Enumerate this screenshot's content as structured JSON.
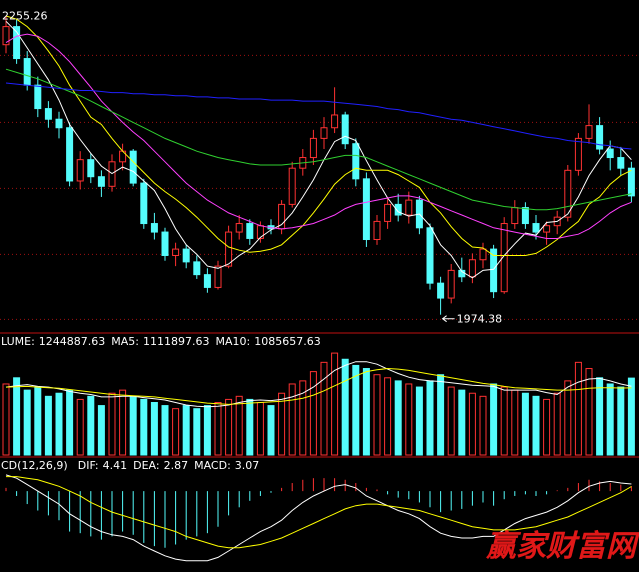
{
  "chart_data": [
    {
      "type": "candlestick",
      "ylim": [
        1960,
        2270
      ],
      "gridlines": [
        2218,
        2155,
        2093,
        2031,
        1970
      ],
      "grid_color": "#a01010",
      "up_color": "#ff3232",
      "down_color": "#54fcfc",
      "open": [
        2228,
        2245,
        2215,
        2190,
        2168,
        2158,
        2150,
        2100,
        2120,
        2104,
        2095,
        2118,
        2128,
        2098,
        2060,
        2052,
        2030,
        2036,
        2024,
        2012,
        2000,
        2020,
        2052,
        2060,
        2046,
        2058,
        2055,
        2078,
        2112,
        2122,
        2140,
        2150,
        2162,
        2135,
        2102,
        2045,
        2062,
        2078,
        2068,
        2082,
        2056,
        2004,
        1990,
        2016,
        2010,
        2026,
        2036,
        1996,
        2060,
        2075,
        2060,
        2052,
        2058,
        2066,
        2110,
        2140,
        2152,
        2130,
        2122,
        2112
      ],
      "high": [
        2255.26,
        2252,
        2222,
        2198,
        2175,
        2165,
        2155,
        2128,
        2126,
        2110,
        2125,
        2135,
        2130,
        2102,
        2070,
        2056,
        2042,
        2040,
        2030,
        2018,
        2025,
        2058,
        2068,
        2064,
        2062,
        2064,
        2082,
        2118,
        2130,
        2148,
        2160,
        2188,
        2165,
        2140,
        2108,
        2068,
        2085,
        2088,
        2090,
        2086,
        2060,
        2010,
        2022,
        2028,
        2032,
        2042,
        2040,
        2066,
        2082,
        2080,
        2068,
        2062,
        2072,
        2115,
        2145,
        2172,
        2160,
        2138,
        2132,
        2118
      ],
      "low": [
        2220,
        2210,
        2185,
        2160,
        2150,
        2140,
        2095,
        2092,
        2098,
        2085,
        2090,
        2110,
        2095,
        2055,
        2045,
        2025,
        2020,
        2018,
        2008,
        1995,
        1998,
        2018,
        2045,
        2040,
        2042,
        2050,
        2050,
        2075,
        2105,
        2115,
        2130,
        2145,
        2130,
        2095,
        2038,
        2040,
        2055,
        2062,
        2060,
        2050,
        1998,
        1974.38,
        1985,
        2005,
        2004,
        2018,
        1990,
        1994,
        2055,
        2055,
        2045,
        2040,
        2050,
        2062,
        2105,
        2135,
        2125,
        2110,
        2105,
        2080
      ],
      "close": [
        2245,
        2215,
        2190,
        2168,
        2158,
        2150,
        2100,
        2120,
        2104,
        2095,
        2118,
        2128,
        2098,
        2060,
        2052,
        2030,
        2036,
        2024,
        2012,
        2000,
        2020,
        2052,
        2060,
        2046,
        2058,
        2055,
        2078,
        2112,
        2122,
        2140,
        2150,
        2162,
        2135,
        2102,
        2045,
        2062,
        2078,
        2068,
        2082,
        2056,
        2004,
        1990,
        2016,
        2010,
        2026,
        2036,
        1996,
        2060,
        2075,
        2060,
        2052,
        2058,
        2066,
        2110,
        2140,
        2152,
        2130,
        2122,
        2112,
        2086
      ],
      "lines": [
        {
          "color": "#ffffff",
          "values": [
            2250,
            2240,
            2225,
            2210,
            2195,
            2176,
            2153,
            2139,
            2126,
            2114,
            2107,
            2113,
            2109,
            2100,
            2091,
            2074,
            2055,
            2040,
            2031,
            2020,
            2018,
            2022,
            2030,
            2036,
            2047,
            2054,
            2059,
            2070,
            2085,
            2101,
            2120,
            2137,
            2142,
            2138,
            2119,
            2101,
            2084,
            2071,
            2067,
            2069,
            2058,
            2040,
            2030,
            2015,
            2009,
            2016,
            2017,
            2030,
            2041,
            2051,
            2049,
            2061,
            2062,
            2069,
            2085,
            2105,
            2120,
            2133,
            2131,
            2120
          ]
        },
        {
          "color": "#ffff00",
          "values": [
            2255,
            2252,
            2245,
            2235,
            2222,
            2208,
            2190,
            2175,
            2160,
            2153,
            2140,
            2128,
            2118,
            2108,
            2098,
            2090,
            2083,
            2075,
            2066,
            2056,
            2046,
            2038,
            2035,
            2033,
            2034,
            2036,
            2040,
            2049,
            2058,
            2070,
            2083,
            2097,
            2106,
            2112,
            2110,
            2110,
            2110,
            2106,
            2100,
            2094,
            2080,
            2070,
            2057,
            2046,
            2038,
            2037,
            2030,
            2030,
            2030,
            2030,
            2032,
            2038,
            2045,
            2054,
            2062,
            2078,
            2085,
            2097,
            2105,
            2110
          ]
        },
        {
          "color": "#ff40ff",
          "values": [
            2230,
            2236,
            2238,
            2236,
            2230,
            2222,
            2212,
            2200,
            2188,
            2175,
            2165,
            2155,
            2146,
            2138,
            2128,
            2118,
            2108,
            2098,
            2090,
            2082,
            2076,
            2070,
            2066,
            2062,
            2058,
            2056,
            2055,
            2056,
            2058,
            2060,
            2064,
            2068,
            2074,
            2078,
            2080,
            2082,
            2084,
            2086,
            2086,
            2084,
            2080,
            2076,
            2072,
            2068,
            2064,
            2060,
            2056,
            2054,
            2052,
            2050,
            2048,
            2046,
            2046,
            2048,
            2050,
            2055,
            2062,
            2070,
            2076,
            2080
          ]
        },
        {
          "color": "#30d030",
          "values": [
            2205,
            2202,
            2199,
            2196,
            2192,
            2188,
            2184,
            2180,
            2175,
            2170,
            2165,
            2160,
            2155,
            2150,
            2145,
            2140,
            2136,
            2132,
            2128,
            2125,
            2122,
            2120,
            2118,
            2116,
            2115,
            2115,
            2115,
            2116,
            2117,
            2118,
            2120,
            2122,
            2124,
            2124,
            2122,
            2118,
            2114,
            2110,
            2106,
            2102,
            2098,
            2094,
            2090,
            2086,
            2082,
            2080,
            2078,
            2076,
            2075,
            2074,
            2073,
            2073,
            2074,
            2076,
            2078,
            2080,
            2082,
            2084,
            2086,
            2088
          ]
        },
        {
          "color": "#2020ff",
          "values": [
            2192,
            2191,
            2190,
            2189,
            2188,
            2187,
            2186,
            2185,
            2185,
            2184,
            2183,
            2183,
            2182,
            2182,
            2181,
            2181,
            2180,
            2180,
            2179,
            2179,
            2178,
            2178,
            2177,
            2177,
            2177,
            2176,
            2176,
            2176,
            2175,
            2175,
            2175,
            2174,
            2173,
            2172,
            2171,
            2170,
            2168,
            2167,
            2165,
            2164,
            2162,
            2160,
            2158,
            2157,
            2155,
            2153,
            2151,
            2149,
            2147,
            2145,
            2143,
            2141,
            2140,
            2138,
            2137,
            2136,
            2134,
            2133,
            2131,
            2130
          ]
        }
      ]
    },
    {
      "type": "volume",
      "label": "LUME:",
      "label_color": "#ffffff",
      "ylim": [
        0,
        1700000
      ],
      "values": [
        1150000,
        1250000,
        1050000,
        1100000,
        950000,
        1000000,
        1050000,
        900000,
        950000,
        800000,
        1000000,
        1050000,
        950000,
        900000,
        850000,
        800000,
        750000,
        800000,
        750000,
        800000,
        850000,
        900000,
        950000,
        900000,
        850000,
        800000,
        1000000,
        1150000,
        1200000,
        1350000,
        1500000,
        1650000,
        1550000,
        1450000,
        1400000,
        1300000,
        1250000,
        1200000,
        1150000,
        1100000,
        1200000,
        1300000,
        1100000,
        1050000,
        1000000,
        950000,
        1150000,
        1100000,
        1050000,
        1000000,
        950000,
        900000,
        1000000,
        1200000,
        1500000,
        1400000,
        1250000,
        1150000,
        1100000,
        1244887.63
      ],
      "lines": [
        {
          "label": "MA5:",
          "color": "#ffffff",
          "values": [
            1100000,
            1120000,
            1140000,
            1110000,
            1100000,
            1070000,
            1030000,
            1000000,
            980000,
            940000,
            940000,
            950000,
            950000,
            930000,
            910000,
            890000,
            850000,
            810000,
            790000,
            780000,
            790000,
            810000,
            850000,
            880000,
            890000,
            880000,
            900000,
            940000,
            1000000,
            1100000,
            1230000,
            1370000,
            1450000,
            1510000,
            1510000,
            1470000,
            1390000,
            1320000,
            1260000,
            1220000,
            1200000,
            1190000,
            1170000,
            1150000,
            1130000,
            1120000,
            1110000,
            1050000,
            1050000,
            1050000,
            1050000,
            1010000,
            980000,
            1100000,
            1180000,
            1230000,
            1240000,
            1200000,
            1150000,
            1111897.63
          ]
        },
        {
          "label": "MA10:",
          "color": "#ffff00",
          "values": [
            1100000,
            1105000,
            1110000,
            1100000,
            1090000,
            1080000,
            1060000,
            1040000,
            1020000,
            1000000,
            980000,
            970000,
            960000,
            950000,
            940000,
            920000,
            900000,
            880000,
            860000,
            840000,
            830000,
            820000,
            830000,
            840000,
            850000,
            860000,
            870000,
            890000,
            920000,
            970000,
            1040000,
            1120000,
            1200000,
            1280000,
            1350000,
            1380000,
            1400000,
            1390000,
            1370000,
            1340000,
            1310000,
            1280000,
            1250000,
            1220000,
            1190000,
            1160000,
            1140000,
            1110000,
            1090000,
            1080000,
            1070000,
            1060000,
            1050000,
            1050000,
            1060000,
            1080000,
            1090000,
            1090000,
            1085000,
            1085657.63
          ]
        }
      ]
    },
    {
      "type": "macd",
      "title": "CD(12,26,9)",
      "label": "MACD:",
      "label_color": "#ff40ff",
      "ylim": [
        -50,
        18
      ],
      "values": [
        2,
        -3,
        -8,
        -12,
        -15,
        -18,
        -25,
        -26,
        -28,
        -30,
        -28,
        -25,
        -27,
        -32,
        -34,
        -35,
        -33,
        -30,
        -28,
        -26,
        -22,
        -15,
        -10,
        -6,
        -3,
        -1,
        2,
        5,
        7,
        8,
        8,
        8,
        7,
        5,
        2,
        1,
        -2,
        -4,
        -5,
        -7,
        -10,
        -13,
        -12,
        -11,
        -9,
        -7,
        -9,
        -5,
        -3,
        -2,
        -3,
        -2,
        0.5,
        2,
        5,
        7,
        6,
        5,
        4,
        3.07
      ],
      "lines": [
        {
          "label": "DIF:",
          "color": "#ffffff",
          "values": [
            10,
            8,
            4,
            0,
            -4,
            -8,
            -14,
            -18,
            -22,
            -25,
            -27,
            -28,
            -30,
            -34,
            -37,
            -40,
            -42,
            -43,
            -43,
            -43,
            -41,
            -37,
            -33,
            -29,
            -25,
            -22,
            -18,
            -12,
            -7,
            -3,
            0,
            3,
            4,
            2,
            -3,
            -6,
            -9,
            -12,
            -14,
            -17,
            -22,
            -26,
            -28,
            -29,
            -29,
            -28,
            -28,
            -24,
            -20,
            -17,
            -15,
            -13,
            -10,
            -6,
            -1,
            3,
            5,
            6,
            5,
            4.41
          ]
        },
        {
          "label": "DEA:",
          "color": "#ffff00",
          "values": [
            9,
            9,
            8,
            7,
            5,
            3,
            0,
            -3,
            -7,
            -10,
            -13,
            -15,
            -17,
            -19,
            -21,
            -23,
            -25,
            -28,
            -30,
            -32,
            -34,
            -35,
            -35,
            -34,
            -33,
            -31,
            -29,
            -26,
            -23,
            -20,
            -17,
            -14,
            -11,
            -9,
            -8,
            -8,
            -9,
            -10,
            -11,
            -12,
            -14,
            -16,
            -18,
            -20,
            -22,
            -23,
            -24,
            -24,
            -24,
            -23,
            -22,
            -20,
            -18,
            -16,
            -13,
            -10,
            -7,
            -4,
            -1,
            2.87
          ]
        }
      ]
    }
  ],
  "watermark": "赢家财富网"
}
